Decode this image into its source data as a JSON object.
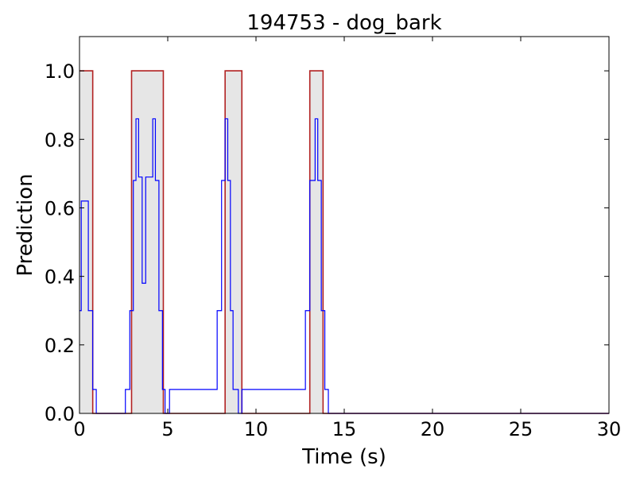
{
  "chart_data": {
    "type": "line",
    "title": "194753 - dog_bark",
    "xlabel": "Time (s)",
    "ylabel": "Prediction",
    "xlim": [
      0,
      30
    ],
    "ylim": [
      0,
      1.1
    ],
    "xticks": [
      "0",
      "5",
      "10",
      "15",
      "20",
      "25",
      "30"
    ],
    "yticks": [
      "0.0",
      "0.2",
      "0.4",
      "0.6",
      "0.8",
      "1.0"
    ],
    "grid": false,
    "legend": "none",
    "series": [
      {
        "role": "ground_truth",
        "style": "step",
        "color": "#b22222",
        "fill": "#e6e6e6",
        "x": [
          0,
          0.75,
          0.75,
          2.95,
          2.95,
          4.75,
          4.75,
          8.25,
          8.25,
          9.2,
          9.2,
          13.05,
          13.05,
          13.8,
          13.8,
          30
        ],
        "y": [
          1,
          1,
          0,
          0,
          1,
          1,
          0,
          0,
          1,
          1,
          0,
          0,
          1,
          1,
          0,
          0
        ]
      },
      {
        "role": "prediction",
        "style": "step",
        "color": "#0000ff",
        "x": [
          0,
          0.1,
          0.1,
          0.5,
          0.5,
          0.75,
          0.75,
          0.95,
          0.95,
          2.6,
          2.6,
          2.85,
          2.85,
          3.05,
          3.05,
          3.2,
          3.2,
          3.35,
          3.35,
          3.55,
          3.55,
          3.75,
          3.75,
          4.15,
          4.15,
          4.3,
          4.3,
          4.5,
          4.5,
          4.7,
          4.7,
          4.85,
          4.85,
          5.1,
          5.1,
          7.8,
          7.8,
          8.05,
          8.05,
          8.25,
          8.25,
          8.4,
          8.4,
          8.55,
          8.55,
          8.7,
          8.7,
          9.0,
          9.0,
          9.2,
          9.2,
          12.8,
          12.8,
          13.05,
          13.05,
          13.35,
          13.35,
          13.5,
          13.5,
          13.7,
          13.7,
          13.9,
          13.9,
          14.1,
          14.1,
          30
        ],
        "y": [
          0.3,
          0.3,
          0.62,
          0.62,
          0.3,
          0.3,
          0.07,
          0.07,
          0.0,
          0.0,
          0.07,
          0.07,
          0.3,
          0.3,
          0.68,
          0.68,
          0.86,
          0.86,
          0.69,
          0.69,
          0.38,
          0.38,
          0.69,
          0.69,
          0.86,
          0.86,
          0.68,
          0.68,
          0.3,
          0.3,
          0.07,
          0.07,
          0.0,
          0.0,
          0.07,
          0.07,
          0.3,
          0.3,
          0.68,
          0.68,
          0.86,
          0.86,
          0.68,
          0.68,
          0.3,
          0.3,
          0.07,
          0.07,
          0.0,
          0.0,
          0.07,
          0.07,
          0.3,
          0.3,
          0.68,
          0.68,
          0.86,
          0.86,
          0.68,
          0.68,
          0.3,
          0.3,
          0.07,
          0.07,
          0.0,
          0.0
        ]
      }
    ]
  }
}
